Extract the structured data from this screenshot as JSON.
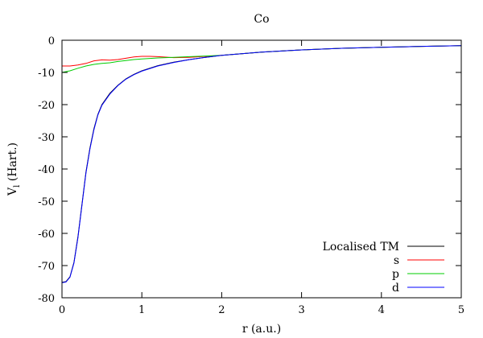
{
  "chart_data": {
    "type": "line",
    "title": "Co",
    "xlabel": "r (a.u.)",
    "ylabel_main": "V",
    "ylabel_sub": "l",
    "ylabel_rest": " (Hart.)",
    "xlim": [
      0,
      5
    ],
    "ylim": [
      -80,
      0
    ],
    "xticks": [
      0,
      1,
      2,
      3,
      4,
      5
    ],
    "yticks": [
      0,
      -10,
      -20,
      -30,
      -40,
      -50,
      -60,
      -70,
      -80
    ],
    "grid": false,
    "legend_position": "bottom-right",
    "series": [
      {
        "name": "Localised TM",
        "color": "#000000",
        "x": [
          0.0,
          0.05,
          0.1,
          0.15,
          0.2,
          0.25,
          0.3,
          0.35,
          0.4,
          0.45,
          0.5,
          0.6,
          0.7,
          0.8,
          0.9,
          1.0,
          1.2,
          1.4,
          1.6,
          1.8,
          2.0,
          2.5,
          3.0,
          3.5,
          4.0,
          4.5,
          5.0
        ],
        "y": [
          -75.2,
          -75.0,
          -73.5,
          -69.0,
          -61.0,
          -51.0,
          -41.0,
          -33.5,
          -27.5,
          -23.0,
          -20.0,
          -16.5,
          -14.0,
          -12.0,
          -10.6,
          -9.5,
          -7.9,
          -6.8,
          -6.0,
          -5.3,
          -4.7,
          -3.7,
          -3.0,
          -2.5,
          -2.2,
          -1.9,
          -1.7
        ]
      },
      {
        "name": "s",
        "color": "#ff0000",
        "x": [
          0.0,
          0.1,
          0.2,
          0.3,
          0.4,
          0.5,
          0.6,
          0.7,
          0.8,
          0.9,
          1.0,
          1.1,
          1.2,
          1.4,
          1.6,
          1.8,
          2.0,
          2.5,
          3.0,
          3.5,
          4.0,
          4.5,
          5.0
        ],
        "y": [
          -8.0,
          -8.0,
          -7.7,
          -7.2,
          -6.4,
          -6.1,
          -6.2,
          -6.0,
          -5.6,
          -5.2,
          -5.0,
          -5.0,
          -5.1,
          -5.4,
          -5.3,
          -5.0,
          -4.7,
          -3.7,
          -3.0,
          -2.5,
          -2.2,
          -1.9,
          -1.7
        ]
      },
      {
        "name": "p",
        "color": "#00cc00",
        "x": [
          0.0,
          0.1,
          0.2,
          0.3,
          0.4,
          0.5,
          0.6,
          0.7,
          0.8,
          0.9,
          1.0,
          1.2,
          1.4,
          1.6,
          1.8,
          2.0,
          2.5,
          3.0,
          3.5,
          4.0,
          4.5,
          5.0
        ],
        "y": [
          -10.0,
          -9.5,
          -8.7,
          -8.0,
          -7.5,
          -7.2,
          -7.0,
          -6.6,
          -6.3,
          -6.0,
          -5.8,
          -5.5,
          -5.3,
          -5.1,
          -4.9,
          -4.7,
          -3.7,
          -3.0,
          -2.5,
          -2.2,
          -1.9,
          -1.7
        ]
      },
      {
        "name": "d",
        "color": "#0000ff",
        "x": [
          0.0,
          0.05,
          0.1,
          0.15,
          0.2,
          0.25,
          0.3,
          0.35,
          0.4,
          0.45,
          0.5,
          0.6,
          0.7,
          0.8,
          0.9,
          1.0,
          1.2,
          1.4,
          1.6,
          1.8,
          2.0,
          2.5,
          3.0,
          3.5,
          4.0,
          4.5,
          5.0
        ],
        "y": [
          -75.3,
          -75.1,
          -73.6,
          -69.2,
          -61.3,
          -51.3,
          -41.3,
          -33.8,
          -27.8,
          -23.2,
          -20.2,
          -16.7,
          -14.1,
          -12.1,
          -10.7,
          -9.6,
          -8.0,
          -6.9,
          -6.0,
          -5.3,
          -4.7,
          -3.7,
          -3.0,
          -2.5,
          -2.2,
          -1.9,
          -1.7
        ]
      }
    ]
  }
}
